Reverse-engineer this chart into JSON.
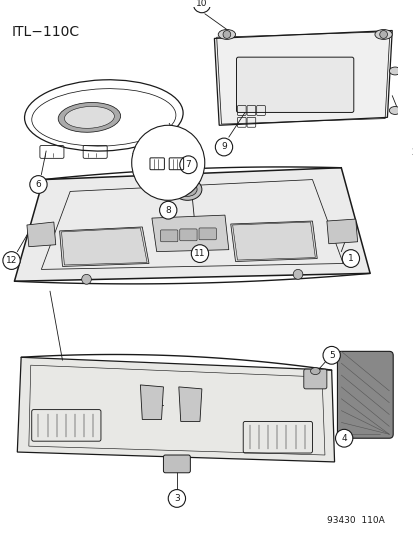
{
  "title": "ITL−110C",
  "footnote": "93430  110A",
  "bg_color": "#f5f5f0",
  "fg_color": "#1a1a1a",
  "title_fontsize": 10,
  "footnote_fontsize": 6.5,
  "lw_main": 0.9,
  "lw_thin": 0.55,
  "lw_circle": 0.8,
  "circle_r": 0.018,
  "label_fontsize": 6.5
}
